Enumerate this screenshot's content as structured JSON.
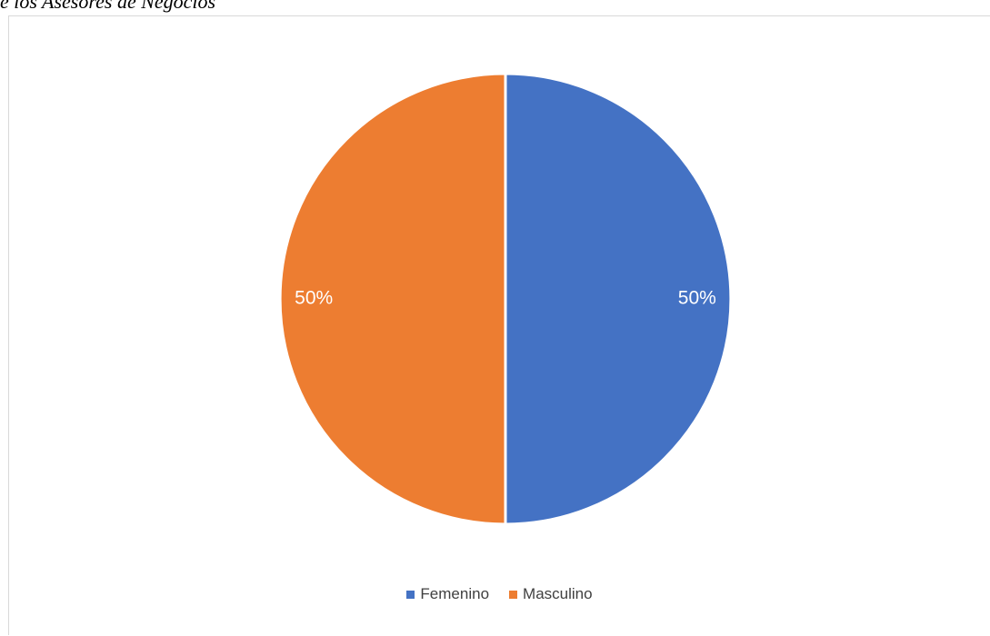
{
  "caption": "e los Asesores de Negocios",
  "chart_data": {
    "type": "pie",
    "slices": [
      {
        "label": "Femenino",
        "value": 50,
        "display": "50%",
        "color": "#4472C4"
      },
      {
        "label": "Masculino",
        "value": 50,
        "display": "50%",
        "color": "#ED7D31"
      }
    ],
    "legend_position": "bottom"
  }
}
